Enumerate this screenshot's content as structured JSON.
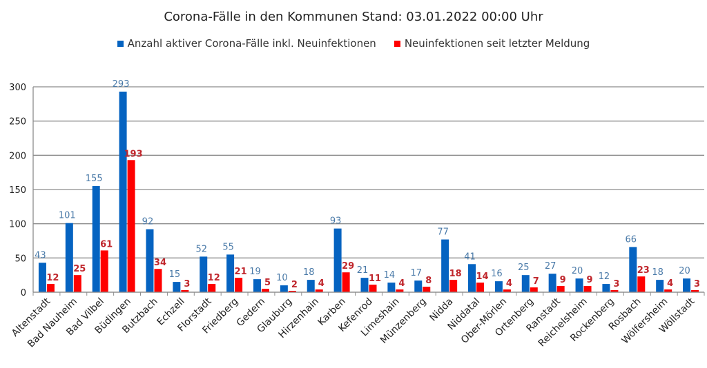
{
  "chart_data": {
    "type": "bar",
    "title": "Corona-Fälle in den Kommunen Stand: 03.01.2022 00:00 Uhr",
    "xlabel": "",
    "ylabel": "",
    "ylim": [
      0,
      300
    ],
    "yticks": [
      0,
      50,
      100,
      150,
      200,
      250,
      300
    ],
    "grid": true,
    "legend_position": "top",
    "categories": [
      "Altenstadt",
      "Bad Nauheim",
      "Bad Vilbel",
      "Büdingen",
      "Butzbach",
      "Echzell",
      "Florstadt",
      "Friedberg",
      "Gedern",
      "Glauburg",
      "Hirzenhain",
      "Karben",
      "Kefenrod",
      "Limeshain",
      "Münzenberg",
      "Nidda",
      "Niddatal",
      "Ober-Mörlen",
      "Ortenberg",
      "Ranstadt",
      "Reichelsheim",
      "Rockenberg",
      "Rosbach",
      "Wölfersheim",
      "Wöllstadt"
    ],
    "series": [
      {
        "name": "Anzahl aktiver Corona-Fälle inkl. Neuinfektionen",
        "color": "#0563c1",
        "label_color": "#4a7aa8",
        "values": [
          43,
          101,
          155,
          293,
          92,
          15,
          52,
          55,
          19,
          10,
          18,
          93,
          21,
          14,
          17,
          77,
          41,
          16,
          25,
          27,
          20,
          12,
          66,
          18,
          20
        ]
      },
      {
        "name": "Neuinfektionen seit letzter Meldung",
        "color": "#ff0000",
        "label_color": "#c0272d",
        "values": [
          12,
          25,
          61,
          193,
          34,
          3,
          12,
          21,
          5,
          2,
          4,
          29,
          11,
          4,
          8,
          18,
          14,
          4,
          7,
          9,
          9,
          3,
          23,
          4,
          3
        ]
      }
    ]
  }
}
